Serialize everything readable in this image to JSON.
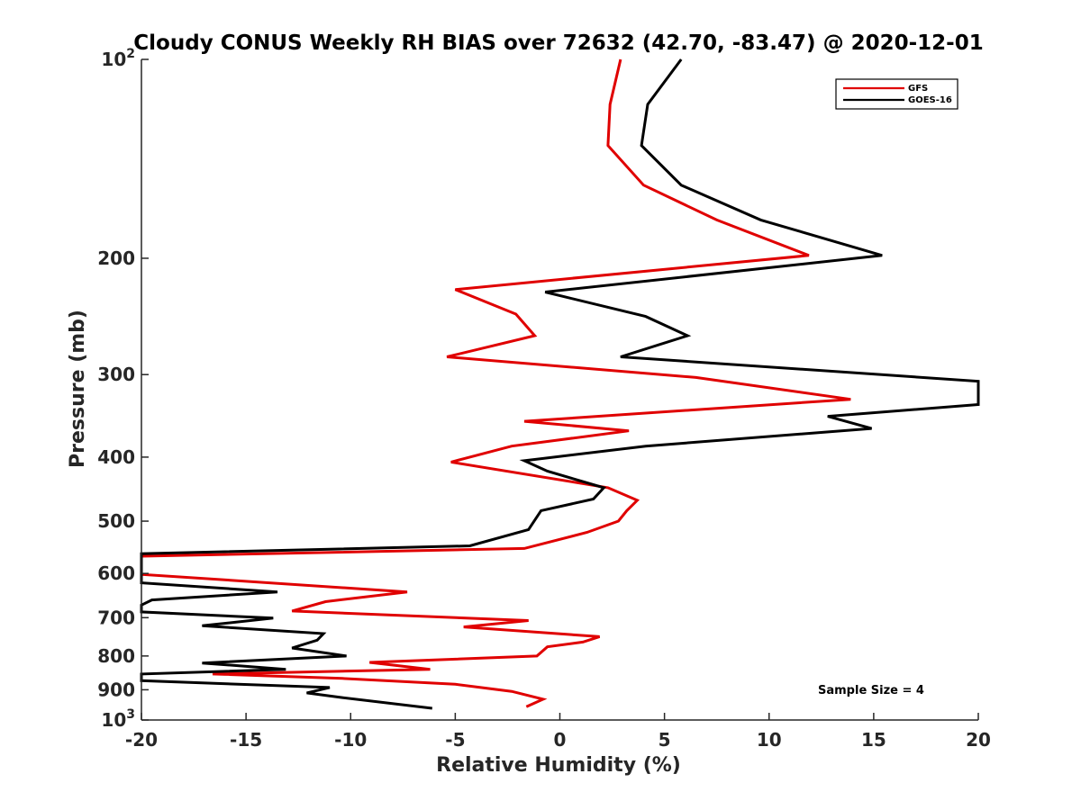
{
  "chart_data": {
    "type": "line",
    "title": "Cloudy CONUS Weekly RH BIAS over 72632 (42.70, -83.47) @ 2020-12-01",
    "xlabel": "Relative Humidity (%)",
    "ylabel": "Pressure (mb)",
    "xlim": [
      -20,
      20
    ],
    "ylim": [
      100,
      1000
    ],
    "y_scale": "log",
    "y_reversed": true,
    "x_ticks": [
      "-20",
      "-15",
      "-10",
      "-5",
      "0",
      "5",
      "10",
      "15",
      "20"
    ],
    "y_ticks": [
      {
        "value": 100,
        "base": "10",
        "exp": "2"
      },
      {
        "value": 200,
        "label": "200"
      },
      {
        "value": 300,
        "label": "300"
      },
      {
        "value": 400,
        "label": "400"
      },
      {
        "value": 500,
        "label": "500"
      },
      {
        "value": 600,
        "label": "600"
      },
      {
        "value": 700,
        "label": "700"
      },
      {
        "value": 800,
        "label": "800"
      },
      {
        "value": 900,
        "label": "900"
      },
      {
        "value": 1000,
        "base": "10",
        "exp": "3"
      }
    ],
    "grid": false,
    "legend_position": "top-right",
    "series": [
      {
        "name": "GFS",
        "color": "#e00000",
        "points": [
          [
            2.9,
            100
          ],
          [
            2.4,
            117
          ],
          [
            2.3,
            135
          ],
          [
            4.0,
            155
          ],
          [
            7.5,
            175
          ],
          [
            11.9,
            198
          ],
          [
            -5.0,
            223
          ],
          [
            -2.1,
            243
          ],
          [
            -1.2,
            262
          ],
          [
            -5.4,
            282
          ],
          [
            6.5,
            303
          ],
          [
            13.9,
            327
          ],
          [
            -1.7,
            353
          ],
          [
            3.3,
            365
          ],
          [
            -2.3,
            385
          ],
          [
            -5.2,
            407
          ],
          [
            2.3,
            445
          ],
          [
            3.7,
            465
          ],
          [
            3.2,
            482
          ],
          [
            2.8,
            500
          ],
          [
            1.3,
            520
          ],
          [
            -1.7,
            550
          ],
          [
            -20.0,
            565
          ],
          [
            -20.0,
            602
          ],
          [
            -7.3,
            640
          ],
          [
            -11.2,
            662
          ],
          [
            -12.8,
            684
          ],
          [
            -1.5,
            707
          ],
          [
            -4.6,
            723
          ],
          [
            1.9,
            748
          ],
          [
            1.1,
            762
          ],
          [
            -0.6,
            775
          ],
          [
            -1.1,
            800
          ],
          [
            -9.1,
            818
          ],
          [
            -6.2,
            838
          ],
          [
            -16.6,
            852
          ],
          [
            -10.4,
            865
          ],
          [
            -5.0,
            883
          ],
          [
            -2.3,
            905
          ],
          [
            -0.8,
            930
          ],
          [
            -1.6,
            955
          ]
        ]
      },
      {
        "name": "GOES-16",
        "color": "#000000",
        "points": [
          [
            5.8,
            100
          ],
          [
            4.2,
            117
          ],
          [
            3.9,
            135
          ],
          [
            5.8,
            155
          ],
          [
            9.6,
            175
          ],
          [
            15.4,
            198
          ],
          [
            -0.7,
            225
          ],
          [
            4.1,
            245
          ],
          [
            6.1,
            262
          ],
          [
            2.9,
            282
          ],
          [
            20.0,
            307
          ],
          [
            20.0,
            333
          ],
          [
            12.8,
            347
          ],
          [
            14.9,
            362
          ],
          [
            4.1,
            385
          ],
          [
            -1.7,
            405
          ],
          [
            -0.6,
            420
          ],
          [
            2.1,
            445
          ],
          [
            1.6,
            463
          ],
          [
            -0.9,
            482
          ],
          [
            -1.5,
            515
          ],
          [
            -4.3,
            545
          ],
          [
            -20.0,
            560
          ],
          [
            -20.0,
            620
          ],
          [
            -13.5,
            640
          ],
          [
            -19.5,
            658
          ],
          [
            -20.0,
            670
          ],
          [
            -20.0,
            686
          ],
          [
            -13.7,
            701
          ],
          [
            -17.1,
            720
          ],
          [
            -11.3,
            740
          ],
          [
            -11.6,
            757
          ],
          [
            -12.8,
            778
          ],
          [
            -10.2,
            800
          ],
          [
            -17.1,
            820
          ],
          [
            -13.1,
            838
          ],
          [
            -20.0,
            852
          ],
          [
            -20.0,
            872
          ],
          [
            -11.0,
            893
          ],
          [
            -12.1,
            910
          ],
          [
            -10.4,
            925
          ],
          [
            -6.1,
            960
          ]
        ]
      }
    ],
    "annotation": "Sample Size = 4"
  }
}
